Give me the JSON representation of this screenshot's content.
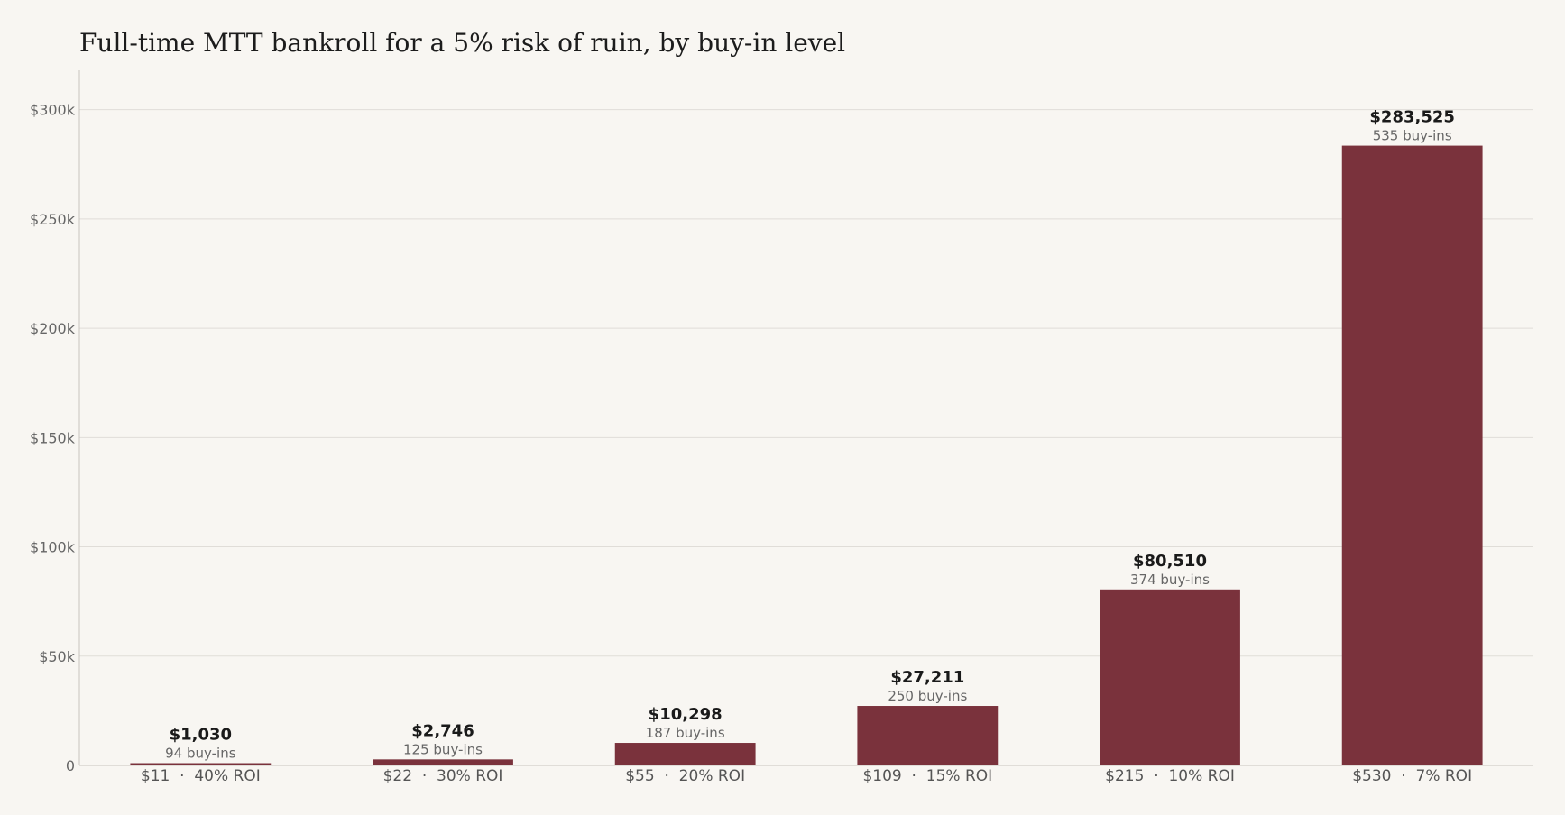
{
  "chart_data": {
    "type": "bar",
    "title": "Full-time MTT bankroll for a 5% risk of ruin, by buy-in level",
    "xlabel": "",
    "ylabel": "",
    "categories": [
      "$11  ·  40% ROI",
      "$22  ·  30% ROI",
      "$55  ·  20% ROI",
      "$109  ·  15% ROI",
      "$215  ·  10% ROI",
      "$530  ·  7% ROI"
    ],
    "values": [
      1030,
      2746,
      10298,
      27211,
      80510,
      283525
    ],
    "value_labels": [
      "$1,030",
      "$2,746",
      "$10,298",
      "$27,211",
      "$80,510",
      "$283,525"
    ],
    "sub_labels": [
      "94 buy-ins",
      "125 buy-ins",
      "187 buy-ins",
      "250 buy-ins",
      "374 buy-ins",
      "535 buy-ins"
    ],
    "ylim": [
      0,
      318000
    ],
    "yticks": [
      0,
      50000,
      100000,
      150000,
      200000,
      250000,
      300000
    ],
    "ytick_labels": [
      "0",
      "$50k",
      "$100k",
      "$150k",
      "$200k",
      "$250k",
      "$300k"
    ],
    "grid": true,
    "legend": "none",
    "bar_color": "#7a323c"
  }
}
